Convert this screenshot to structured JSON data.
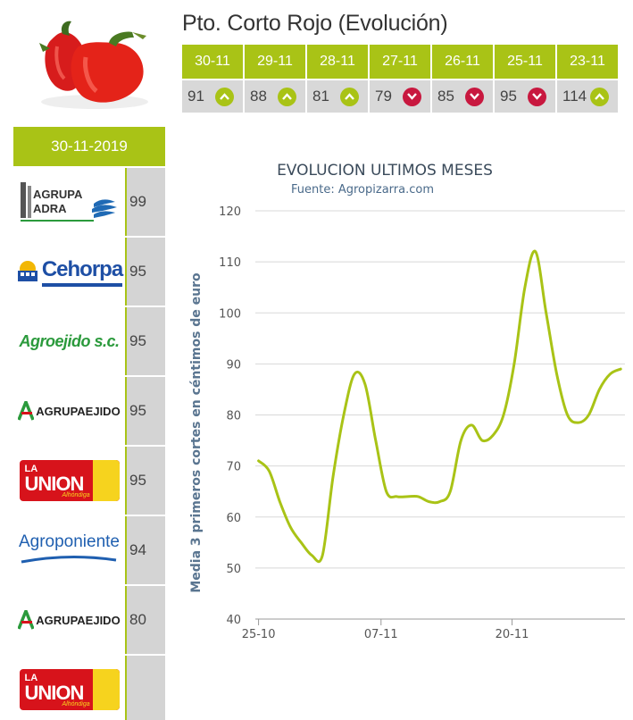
{
  "title": "Pto. Corto Rojo (Evolución)",
  "strip": [
    {
      "date": "30-11",
      "value": "91",
      "trend": "up"
    },
    {
      "date": "29-11",
      "value": "88",
      "trend": "up"
    },
    {
      "date": "28-11",
      "value": "81",
      "trend": "up"
    },
    {
      "date": "27-11",
      "value": "79",
      "trend": "down"
    },
    {
      "date": "26-11",
      "value": "85",
      "trend": "down"
    },
    {
      "date": "25-11",
      "value": "95",
      "trend": "down"
    },
    {
      "date": "23-11",
      "value": "114",
      "trend": "up"
    }
  ],
  "colors": {
    "accent": "#a9c316",
    "down": "#c8183f",
    "cell": "#d8d8d8",
    "line": "#a9c316"
  },
  "left_panel": {
    "date": "30-11-2019",
    "rows": [
      {
        "logo": "Agrupa Adra",
        "logo_lines": [
          "AGRUPA",
          "ADRA"
        ],
        "value": "99"
      },
      {
        "logo": "Cehorpa",
        "logo_lines": [
          "Cehorpa"
        ],
        "value": "95"
      },
      {
        "logo": "Agroejido S.C.",
        "logo_lines": [
          "Agroejido s.c."
        ],
        "value": "95"
      },
      {
        "logo": "Agrupaejido",
        "logo_lines": [
          "AGRUPAEJIDO"
        ],
        "value": "95"
      },
      {
        "logo": "La Union Alhondiga",
        "logo_lines": [
          "LA",
          "UNION",
          "Alhóndiga"
        ],
        "value": "95"
      },
      {
        "logo": "Agroponiente",
        "logo_lines": [
          "Agroponiente"
        ],
        "value": "94"
      },
      {
        "logo": "Agrupaejido",
        "logo_lines": [
          "AGRUPAEJIDO"
        ],
        "value": "80"
      },
      {
        "logo": "La Union Alhondiga",
        "logo_lines": [
          "LA",
          "UNION",
          "Alhóndiga"
        ],
        "value": ""
      }
    ]
  },
  "chart_data": {
    "type": "line",
    "title": "EVOLUCION ULTIMOS MESES",
    "subtitle": "Fuente: Agropizarra.com",
    "ylabel": "Media 3 primeros cortes en céntimos de euro",
    "xlabel": "",
    "ylim": [
      40,
      120
    ],
    "yticks": [
      40,
      50,
      60,
      70,
      80,
      90,
      100,
      110,
      120
    ],
    "xticks": [
      {
        "label": "25-10",
        "pos": 0
      },
      {
        "label": "07-11",
        "pos": 11.5
      },
      {
        "label": "20-11",
        "pos": 23.8
      }
    ],
    "grid": true,
    "series": [
      {
        "values": [
          [
            0,
            71
          ],
          [
            1,
            69
          ],
          [
            2,
            63
          ],
          [
            3,
            58
          ],
          [
            4,
            55
          ],
          [
            5,
            52.5
          ],
          [
            6,
            52.5
          ],
          [
            7,
            68
          ],
          [
            8,
            80
          ],
          [
            9,
            88
          ],
          [
            10,
            86
          ],
          [
            11,
            75
          ],
          [
            12,
            65
          ],
          [
            13,
            64
          ],
          [
            14,
            64
          ],
          [
            15,
            64
          ],
          [
            16,
            63
          ],
          [
            17,
            63
          ],
          [
            18,
            65
          ],
          [
            19,
            75
          ],
          [
            20,
            78
          ],
          [
            21,
            75
          ],
          [
            22,
            76
          ],
          [
            23,
            80
          ],
          [
            24,
            90
          ],
          [
            25,
            105
          ],
          [
            26,
            112
          ],
          [
            27,
            100
          ],
          [
            28,
            88
          ],
          [
            29,
            80
          ],
          [
            30,
            78.5
          ],
          [
            31,
            80
          ],
          [
            32,
            85
          ],
          [
            33,
            88
          ],
          [
            34,
            89
          ]
        ]
      }
    ]
  }
}
